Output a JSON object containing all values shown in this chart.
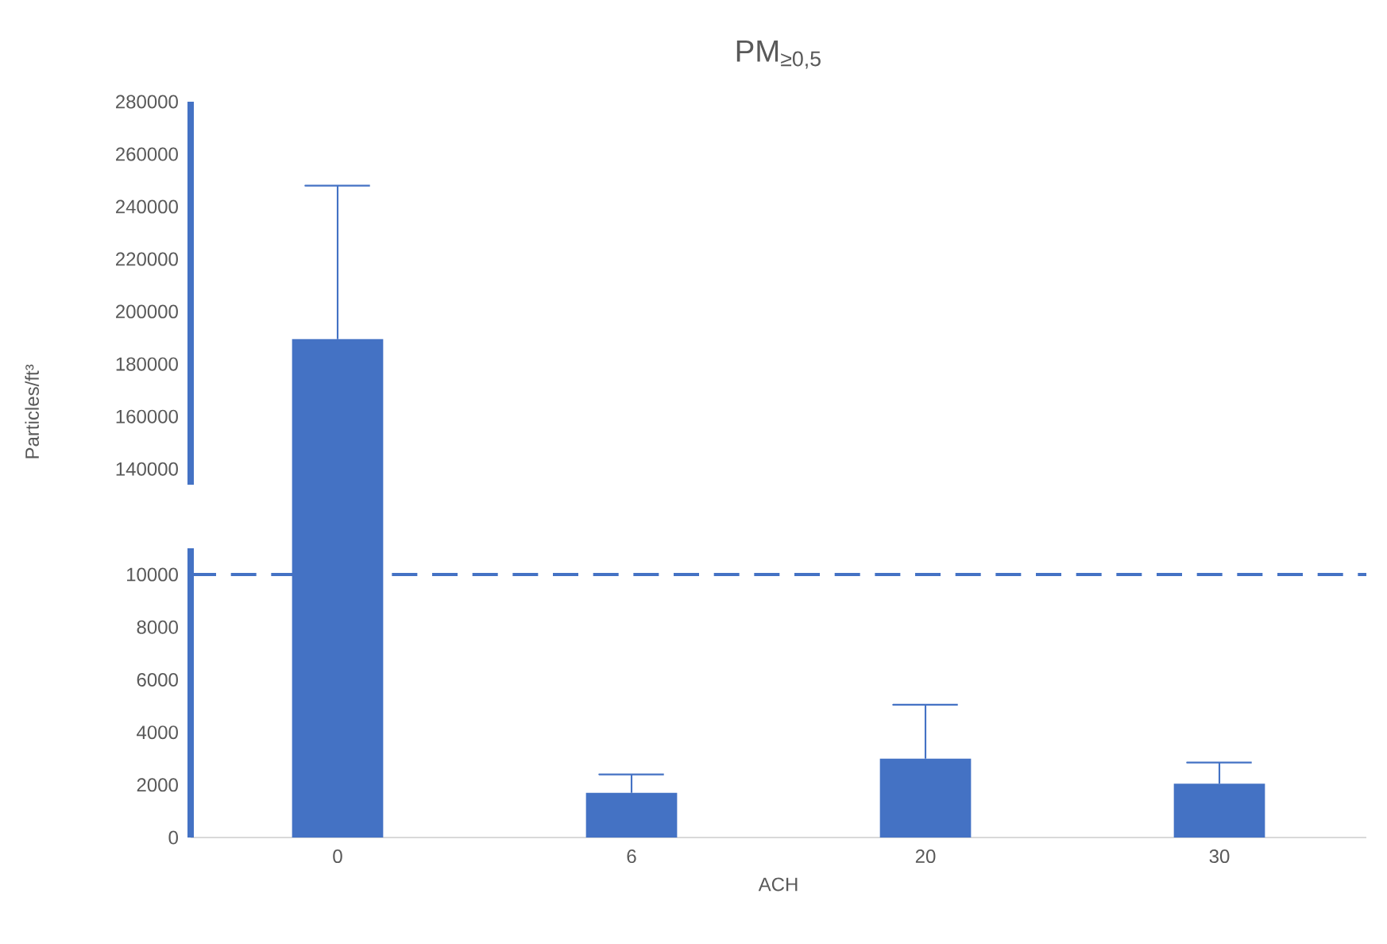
{
  "chart_data": [
    {
      "type": "bar",
      "title": "PM$_{≥0,5}$",
      "ylabel": "Particles/ft³",
      "categories": [
        "0",
        "6",
        "20",
        "30"
      ],
      "values": [
        189500,
        null,
        null,
        null
      ],
      "errors": [
        [
          189500,
          248000
        ],
        null,
        null,
        null
      ],
      "color": "#4472c4",
      "ylim": [
        134000,
        280000
      ],
      "yticks": [
        140000,
        160000,
        180000,
        200000,
        220000,
        240000,
        260000,
        280000
      ],
      "tick_labels": "y"
    },
    {
      "type": "bar",
      "xlabel": "ACH",
      "categories": [
        "0",
        "6",
        "20",
        "30"
      ],
      "values": [
        null,
        1700,
        3000,
        2050
      ],
      "errors": [
        null,
        [
          1700,
          2400
        ],
        [
          3000,
          5050
        ],
        [
          2050,
          2850
        ]
      ],
      "color": "#4472c4",
      "ylim": [
        0,
        11000
      ],
      "yticks": [
        0,
        2000,
        4000,
        6000,
        8000,
        10000
      ],
      "ref_lines": [
        {
          "axis": "y",
          "value": 10000,
          "color": "#4472c4",
          "line_style": "dashed"
        }
      ]
    }
  ]
}
